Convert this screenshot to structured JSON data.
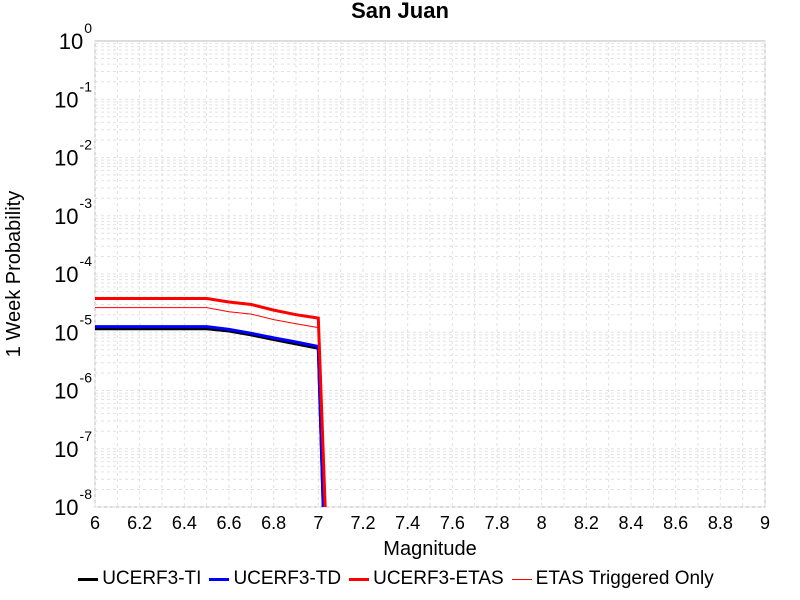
{
  "chart_data": {
    "type": "line",
    "title": "San Juan",
    "xlabel": "Magnitude",
    "ylabel": "1 Week Probability",
    "xlim": [
      6,
      9
    ],
    "ylim": [
      1e-08,
      1
    ],
    "yscale": "log",
    "grid": true,
    "legend_placement": "bottom",
    "x_ticks": [
      "6",
      "6.2",
      "6.4",
      "6.6",
      "6.8",
      "7",
      "7.2",
      "7.4",
      "7.6",
      "7.8",
      "8",
      "8.2",
      "8.4",
      "8.6",
      "8.8",
      "9"
    ],
    "y_ticks": [
      {
        "base": "10",
        "exp": "0"
      },
      {
        "base": "10",
        "exp": "-1"
      },
      {
        "base": "10",
        "exp": "-2"
      },
      {
        "base": "10",
        "exp": "-3"
      },
      {
        "base": "10",
        "exp": "-4"
      },
      {
        "base": "10",
        "exp": "-5"
      },
      {
        "base": "10",
        "exp": "-6"
      },
      {
        "base": "10",
        "exp": "-7"
      },
      {
        "base": "10",
        "exp": "-8"
      }
    ],
    "series": [
      {
        "name": "UCERF3-TI",
        "color": "#000000",
        "width": 3,
        "points": [
          [
            6.0,
            1.15e-05
          ],
          [
            6.5,
            1.15e-05
          ],
          [
            6.6,
            1.05e-05
          ],
          [
            6.7,
            9e-06
          ],
          [
            6.8,
            7.5e-06
          ],
          [
            6.9,
            6.3e-06
          ],
          [
            7.0,
            5.3e-06
          ],
          [
            7.03,
            1e-09
          ]
        ]
      },
      {
        "name": "UCERF3-TD",
        "color": "#0000ff",
        "width": 3,
        "points": [
          [
            6.0,
            1.25e-05
          ],
          [
            6.5,
            1.25e-05
          ],
          [
            6.6,
            1.12e-05
          ],
          [
            6.7,
            9.6e-06
          ],
          [
            6.8,
            8e-06
          ],
          [
            6.9,
            6.8e-06
          ],
          [
            7.0,
            5.7e-06
          ],
          [
            7.03,
            1e-09
          ]
        ]
      },
      {
        "name": "UCERF3-ETAS",
        "color": "#ff0000",
        "width": 3,
        "points": [
          [
            6.0,
            3.8e-05
          ],
          [
            6.5,
            3.8e-05
          ],
          [
            6.6,
            3.3e-05
          ],
          [
            6.7,
            3e-05
          ],
          [
            6.8,
            2.4e-05
          ],
          [
            6.9,
            2e-05
          ],
          [
            7.0,
            1.75e-05
          ],
          [
            7.04,
            1e-09
          ]
        ]
      },
      {
        "name": "ETAS Triggered Only",
        "color": "#ff0000",
        "width": 1,
        "points": [
          [
            6.0,
            2.65e-05
          ],
          [
            6.5,
            2.65e-05
          ],
          [
            6.6,
            2.25e-05
          ],
          [
            6.7,
            2.05e-05
          ],
          [
            6.8,
            1.65e-05
          ],
          [
            6.9,
            1.4e-05
          ],
          [
            7.0,
            1.2e-05
          ],
          [
            7.04,
            1e-09
          ]
        ]
      }
    ]
  }
}
